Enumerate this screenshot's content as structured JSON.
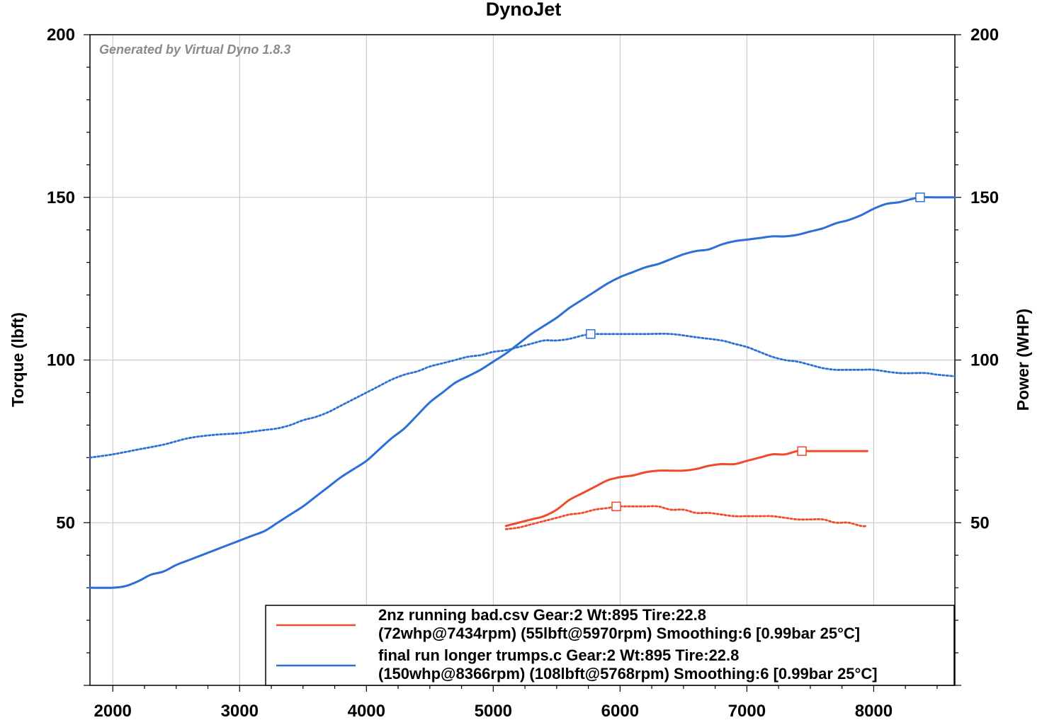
{
  "chart_data": {
    "type": "line",
    "title": "DynoJet",
    "watermark": "Generated by Virtual Dyno 1.8.3",
    "xlabel": "",
    "ylabel_left": "Torque (lbft)",
    "ylabel_right": "Power (WHP)",
    "xlim": [
      1820,
      8640
    ],
    "ylim": [
      0,
      200
    ],
    "x_ticks": [
      "2000",
      "3000",
      "4000",
      "5000",
      "6000",
      "7000",
      "8000"
    ],
    "x_tick_values": [
      2000,
      3000,
      4000,
      5000,
      6000,
      7000,
      8000
    ],
    "y_ticks_left": [
      "50",
      "100",
      "150",
      "200"
    ],
    "y_ticks_right": [
      "50",
      "100",
      "150",
      "200"
    ],
    "y_tick_values": [
      50,
      100,
      150,
      200
    ],
    "grid": true,
    "legend_position": "bottom-right",
    "colors": {
      "red": "#f04a2a",
      "blue": "#2c6fd6"
    },
    "series": [
      {
        "name": "2nz running bad.csv Gear:2 Wt:895 Tire:22.8",
        "name_line2": "(72whp@7434rpm) (55lbft@5970rpm) Smoothing:6 [0.99bar 25°C]",
        "color_key": "red",
        "power": {
          "x": [
            5100,
            5200,
            5300,
            5400,
            5500,
            5600,
            5700,
            5800,
            5900,
            6000,
            6100,
            6200,
            6300,
            6400,
            6500,
            6600,
            6700,
            6800,
            6900,
            7000,
            7100,
            7200,
            7300,
            7400,
            7500,
            7600,
            7700,
            7800,
            7900,
            7950
          ],
          "y": [
            49,
            50,
            51,
            52,
            54,
            57,
            59,
            61,
            63,
            64,
            64.5,
            65.5,
            66,
            66,
            66,
            66.5,
            67.5,
            68,
            68,
            69,
            70,
            71,
            71,
            72,
            72,
            72,
            72,
            72,
            72,
            72
          ]
        },
        "torque": {
          "x": [
            5100,
            5200,
            5300,
            5400,
            5500,
            5600,
            5700,
            5800,
            5900,
            5970,
            6000,
            6100,
            6200,
            6300,
            6400,
            6500,
            6600,
            6700,
            6800,
            6900,
            7000,
            7100,
            7200,
            7300,
            7400,
            7500,
            7600,
            7700,
            7800,
            7900,
            7950
          ],
          "y": [
            48,
            48.5,
            49.5,
            50.5,
            51.5,
            52.5,
            53,
            54,
            54.5,
            55,
            55,
            55,
            55,
            55,
            54,
            54,
            53,
            53,
            52.5,
            52,
            52,
            52,
            52,
            51.5,
            51,
            51,
            51,
            50,
            50,
            49,
            49
          ]
        },
        "power_peak": {
          "x": 7434,
          "y": 72
        },
        "torque_peak": {
          "x": 5970,
          "y": 55
        }
      },
      {
        "name": "final run longer trumps.c Gear:2 Wt:895 Tire:22.8",
        "name_line2": "(150whp@8366rpm) (108lbft@5768rpm) Smoothing:6 [0.99bar 25°C]",
        "color_key": "blue",
        "power": {
          "x": [
            1820,
            2000,
            2100,
            2200,
            2300,
            2400,
            2500,
            2600,
            2700,
            2800,
            2900,
            3000,
            3100,
            3200,
            3300,
            3400,
            3500,
            3600,
            3700,
            3800,
            3900,
            4000,
            4100,
            4200,
            4300,
            4400,
            4500,
            4600,
            4700,
            4800,
            4900,
            5000,
            5100,
            5200,
            5300,
            5400,
            5500,
            5600,
            5700,
            5800,
            5900,
            6000,
            6100,
            6200,
            6300,
            6400,
            6500,
            6600,
            6700,
            6800,
            6900,
            7000,
            7100,
            7200,
            7300,
            7400,
            7500,
            7600,
            7700,
            7800,
            7900,
            8000,
            8100,
            8200,
            8300,
            8366,
            8500,
            8640
          ],
          "y": [
            30,
            30,
            30.5,
            32,
            34,
            35,
            37,
            38.5,
            40,
            41.5,
            43,
            44.5,
            46,
            47.5,
            50,
            52.5,
            55,
            58,
            61,
            64,
            66.5,
            69,
            72.5,
            76,
            79,
            83,
            87,
            90,
            93,
            95,
            97,
            99.5,
            102,
            105,
            108,
            110.5,
            113,
            116,
            118.5,
            121,
            123.5,
            125.5,
            127,
            128.5,
            129.5,
            131,
            132.5,
            133.5,
            134,
            135.5,
            136.5,
            137,
            137.5,
            138,
            138,
            138.5,
            139.5,
            140.5,
            142,
            143,
            144.5,
            146.5,
            148,
            148.5,
            149.5,
            150,
            150,
            150
          ]
        },
        "torque": {
          "x": [
            1820,
            2000,
            2200,
            2400,
            2600,
            2800,
            3000,
            3100,
            3200,
            3300,
            3400,
            3500,
            3600,
            3700,
            3800,
            3900,
            4000,
            4100,
            4200,
            4300,
            4400,
            4500,
            4600,
            4700,
            4800,
            4900,
            5000,
            5100,
            5200,
            5300,
            5400,
            5500,
            5600,
            5700,
            5768,
            5800,
            6000,
            6200,
            6400,
            6600,
            6800,
            6900,
            7000,
            7100,
            7200,
            7300,
            7400,
            7500,
            7600,
            7700,
            7800,
            7900,
            8000,
            8200,
            8400,
            8500,
            8640
          ],
          "y": [
            70,
            71,
            72.5,
            74,
            76,
            77,
            77.5,
            78,
            78.5,
            79,
            80,
            81.5,
            82.5,
            84,
            86,
            88,
            90,
            92,
            94,
            95.5,
            96.5,
            98,
            99,
            100,
            101,
            101.5,
            102.5,
            103,
            104,
            105,
            106,
            106,
            106.5,
            107.5,
            108,
            108,
            108,
            108,
            108,
            107,
            106,
            105,
            104,
            102.5,
            101,
            100,
            99.5,
            98.5,
            97.5,
            97,
            97,
            97,
            97,
            96,
            96,
            95.5,
            95
          ]
        },
        "power_peak": {
          "x": 8366,
          "y": 150
        },
        "torque_peak": {
          "x": 5768,
          "y": 108
        }
      }
    ]
  }
}
